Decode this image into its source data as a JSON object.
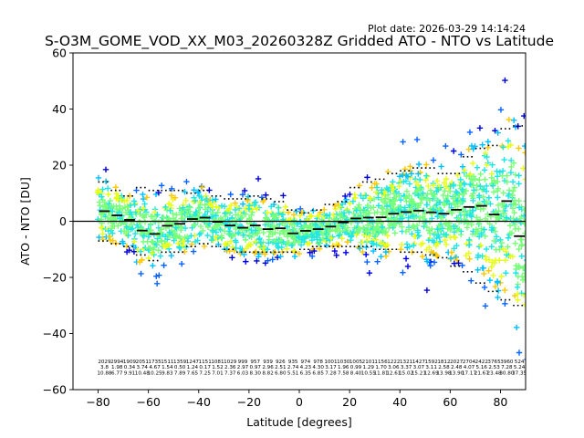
{
  "chart_data": {
    "type": "scatter",
    "title": "S-O3M_GOME_VOD_XX_M03_20260328Z Gridded ATO - NTO vs Latitude",
    "subtitle": "Plot date: 2026-03-29 14:14:24",
    "xlabel": "Latitude [degrees]",
    "ylabel": "ATO - NTO [DU]",
    "xlim": [
      -90,
      90
    ],
    "ylim": [
      -60,
      60
    ],
    "xticks": [
      -80,
      -60,
      -40,
      -20,
      0,
      20,
      40,
      60,
      80
    ],
    "yticks": [
      -60,
      -40,
      -20,
      0,
      20,
      40,
      60
    ],
    "grid": false,
    "legend": "none",
    "zero_line": 0,
    "marker": "+",
    "colormap": [
      "#0000dd",
      "#0a64ff",
      "#00c0ff",
      "#1ee6e6",
      "#78ff78",
      "#e6ff14",
      "#ffc800"
    ],
    "bin_centers": [
      -77.5,
      -72.5,
      -67.5,
      -62.5,
      -57.5,
      -52.5,
      -47.5,
      -42.5,
      -37.5,
      -32.5,
      -27.5,
      -22.5,
      -17.5,
      -12.5,
      -7.5,
      -2.5,
      2.5,
      7.5,
      12.5,
      17.5,
      22.5,
      27.5,
      32.5,
      37.5,
      42.5,
      47.5,
      52.5,
      57.5,
      62.5,
      67.5,
      72.5,
      77.5,
      82.5,
      87.5
    ],
    "bin_mean": [
      3.6,
      2.1,
      0.5,
      -3.3,
      -4.5,
      -1.6,
      -0.9,
      0.8,
      1.3,
      -0.2,
      -1.5,
      -2.3,
      -1.5,
      -2.8,
      -2.5,
      -4.3,
      -3.4,
      -2.8,
      -1.9,
      -0.4,
      1.0,
      1.3,
      1.4,
      2.7,
      3.3,
      3.8,
      3.2,
      2.7,
      4.1,
      5.1,
      5.5,
      2.4,
      7.2,
      -5.3
    ],
    "bin_std_upper": [
      14.0,
      11.0,
      9.0,
      12.0,
      11.0,
      11.0,
      11.0,
      10.0,
      11.0,
      9.0,
      8.0,
      8.0,
      9.0,
      8.0,
      7.0,
      4.0,
      3.0,
      4.0,
      6.0,
      7.0,
      12.0,
      14.0,
      15.0,
      17.0,
      18.0,
      19.0,
      19.0,
      17.0,
      17.0,
      23.0,
      26.0,
      27.0,
      33.0,
      34.0
    ],
    "bin_std_lower": [
      -7.0,
      -8.0,
      -9.0,
      -12.0,
      -14.0,
      -11.0,
      -11.0,
      -9.0,
      -8.0,
      -9.0,
      -10.0,
      -11.0,
      -11.0,
      -11.0,
      -11.0,
      -11.0,
      -10.0,
      -9.0,
      -9.0,
      -9.0,
      -9.0,
      -9.0,
      -10.0,
      -10.0,
      -11.0,
      -11.0,
      -12.0,
      -13.0,
      -16.0,
      -18.0,
      -22.0,
      -25.0,
      -28.0,
      -30.0
    ],
    "stats_rows": [
      [
        "2029",
        "2994",
        "1909",
        "2051",
        "1735",
        "1511",
        "1359",
        "1247",
        "1151",
        "1081",
        "1029",
        "999",
        "957",
        "939",
        "926",
        "935",
        "974",
        "978",
        "1001",
        "1030",
        "1005",
        "2101",
        "1156",
        "1222",
        "1321",
        "1427",
        "1592",
        "1812",
        "2027",
        "2704",
        "2422",
        "3765",
        "3960",
        "524"
      ],
      [
        "3.8",
        "1.98",
        "0.34",
        "3.74",
        "4.67",
        "1.54",
        "0.50",
        "1.24",
        "0.17",
        "1.52",
        "2.36",
        "2.97",
        "0.97",
        "2.96",
        "2.51",
        "2.74",
        "4.23",
        "4.30",
        "3.17",
        "1.96",
        "0.99",
        "1.29",
        "1.70",
        "3.06",
        "3.37",
        "3.07",
        "3.11",
        "2.58",
        "2.48",
        "4.07",
        "5.16",
        "2.53",
        "7.28",
        "5.24"
      ],
      [
        "10.88",
        "6.77",
        "9.91",
        "10.48",
        "10.25",
        "9.83",
        "7.89",
        "7.65",
        "7.25",
        "7.01",
        "7.37",
        "6.03",
        "8.30",
        "8.82",
        "6.80",
        "5.51",
        "6.35",
        "6.85",
        "7.28",
        "7.58",
        "8.40",
        "10.55",
        "11.81",
        "12.61",
        "15.02",
        "15.21",
        "12.69",
        "13.98",
        "13.90",
        "17.17",
        "21.67",
        "23.48",
        "30.80",
        "37.35"
      ]
    ]
  }
}
